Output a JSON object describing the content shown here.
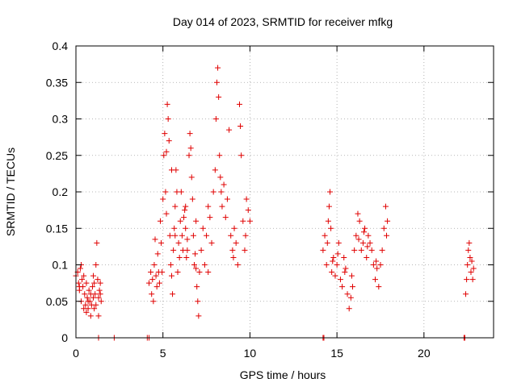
{
  "chart_data": {
    "type": "scatter",
    "title": "Day 014 of 2023, SRMTID for receiver mfkg",
    "xlabel": "GPS time / hours",
    "ylabel": "SRMTID / TECUs",
    "xlim": [
      0,
      24
    ],
    "ylim": [
      0,
      0.4
    ],
    "xticks": [
      0,
      5,
      10,
      15,
      20
    ],
    "yticks": [
      0,
      0.05,
      0.1,
      0.15,
      0.2,
      0.25,
      0.3,
      0.35,
      0.4
    ],
    "grid": true,
    "marker": "+",
    "color": "#e00000",
    "series": [
      {
        "name": "SRMTID",
        "points": [
          [
            0.0,
            0.085
          ],
          [
            0.1,
            0.09
          ],
          [
            0.15,
            0.075
          ],
          [
            0.2,
            0.065
          ],
          [
            0.25,
            0.095
          ],
          [
            0.3,
            0.05
          ],
          [
            0.35,
            0.08
          ],
          [
            0.4,
            0.07
          ],
          [
            0.45,
            0.04
          ],
          [
            0.5,
            0.06
          ],
          [
            0.55,
            0.045
          ],
          [
            0.6,
            0.035
          ],
          [
            0.65,
            0.055
          ],
          [
            0.7,
            0.04
          ],
          [
            0.75,
            0.065
          ],
          [
            0.8,
            0.05
          ],
          [
            0.85,
            0.03
          ],
          [
            0.9,
            0.045
          ],
          [
            0.95,
            0.07
          ],
          [
            1.0,
            0.055
          ],
          [
            1.05,
            0.04
          ],
          [
            1.1,
            0.06
          ],
          [
            1.15,
            0.1
          ],
          [
            1.2,
            0.13
          ],
          [
            1.25,
            0.08
          ],
          [
            1.3,
            0.03
          ],
          [
            1.35,
            0.065
          ],
          [
            1.4,
            0.075
          ],
          [
            1.45,
            0.05
          ],
          [
            0.3,
            0.1
          ],
          [
            0.45,
            0.085
          ],
          [
            0.6,
            0.075
          ],
          [
            0.85,
            0.06
          ],
          [
            1.0,
            0.085
          ],
          [
            1.15,
            0.045
          ],
          [
            1.3,
            0.055
          ],
          [
            0.2,
            0.07
          ],
          [
            0.7,
            0.05
          ],
          [
            1.05,
            0.075
          ],
          [
            1.4,
            0.06
          ],
          [
            4.2,
            0.075
          ],
          [
            4.3,
            0.09
          ],
          [
            4.35,
            0.06
          ],
          [
            4.4,
            0.08
          ],
          [
            4.45,
            0.05
          ],
          [
            4.5,
            0.1
          ],
          [
            4.55,
            0.135
          ],
          [
            4.6,
            0.085
          ],
          [
            4.65,
            0.07
          ],
          [
            4.7,
            0.115
          ],
          [
            4.75,
            0.09
          ],
          [
            4.8,
            0.075
          ],
          [
            4.85,
            0.16
          ],
          [
            4.9,
            0.13
          ],
          [
            4.95,
            0.09
          ],
          [
            5.0,
            0.19
          ],
          [
            5.05,
            0.25
          ],
          [
            5.1,
            0.28
          ],
          [
            5.15,
            0.2
          ],
          [
            5.2,
            0.17
          ],
          [
            5.25,
            0.32
          ],
          [
            5.3,
            0.3
          ],
          [
            5.35,
            0.27
          ],
          [
            5.4,
            0.14
          ],
          [
            5.45,
            0.1
          ],
          [
            5.5,
            0.085
          ],
          [
            5.55,
            0.06
          ],
          [
            5.6,
            0.12
          ],
          [
            5.65,
            0.15
          ],
          [
            5.7,
            0.18
          ],
          [
            5.75,
            0.23
          ],
          [
            5.8,
            0.2
          ],
          [
            5.85,
            0.09
          ],
          [
            5.9,
            0.13
          ],
          [
            5.95,
            0.11
          ],
          [
            6.0,
            0.16
          ],
          [
            6.05,
            0.2
          ],
          [
            6.1,
            0.14
          ],
          [
            6.15,
            0.12
          ],
          [
            6.2,
            0.165
          ],
          [
            6.25,
            0.175
          ],
          [
            6.3,
            0.15
          ],
          [
            6.35,
            0.11
          ],
          [
            6.4,
            0.135
          ],
          [
            6.5,
            0.25
          ],
          [
            6.55,
            0.28
          ],
          [
            6.6,
            0.26
          ],
          [
            6.65,
            0.22
          ],
          [
            6.7,
            0.19
          ],
          [
            6.75,
            0.14
          ],
          [
            6.8,
            0.1
          ],
          [
            6.85,
            0.115
          ],
          [
            6.9,
            0.095
          ],
          [
            6.95,
            0.07
          ],
          [
            7.0,
            0.05
          ],
          [
            7.05,
            0.03
          ],
          [
            7.1,
            0.09
          ],
          [
            7.2,
            0.12
          ],
          [
            7.3,
            0.15
          ],
          [
            7.4,
            0.1
          ],
          [
            7.5,
            0.14
          ],
          [
            7.6,
            0.18
          ],
          [
            7.7,
            0.165
          ],
          [
            7.8,
            0.13
          ],
          [
            7.9,
            0.2
          ],
          [
            8.0,
            0.23
          ],
          [
            8.05,
            0.3
          ],
          [
            8.1,
            0.35
          ],
          [
            8.15,
            0.37
          ],
          [
            8.2,
            0.33
          ],
          [
            8.25,
            0.25
          ],
          [
            8.3,
            0.22
          ],
          [
            8.4,
            0.18
          ],
          [
            8.5,
            0.21
          ],
          [
            8.6,
            0.165
          ],
          [
            8.7,
            0.19
          ],
          [
            8.8,
            0.285
          ],
          [
            8.9,
            0.14
          ],
          [
            9.0,
            0.12
          ],
          [
            9.1,
            0.15
          ],
          [
            9.2,
            0.13
          ],
          [
            9.3,
            0.1
          ],
          [
            9.4,
            0.32
          ],
          [
            9.45,
            0.29
          ],
          [
            9.5,
            0.25
          ],
          [
            9.6,
            0.16
          ],
          [
            9.7,
            0.12
          ],
          [
            9.8,
            0.19
          ],
          [
            9.9,
            0.175
          ],
          [
            10.0,
            0.16
          ],
          [
            5.2,
            0.255
          ],
          [
            5.7,
            0.14
          ],
          [
            6.4,
            0.12
          ],
          [
            6.9,
            0.16
          ],
          [
            7.6,
            0.09
          ],
          [
            8.35,
            0.2
          ],
          [
            9.05,
            0.11
          ],
          [
            9.75,
            0.14
          ],
          [
            5.5,
            0.23
          ],
          [
            6.3,
            0.18
          ],
          [
            14.2,
            0.12
          ],
          [
            14.3,
            0.14
          ],
          [
            14.4,
            0.1
          ],
          [
            14.5,
            0.16
          ],
          [
            14.55,
            0.18
          ],
          [
            14.6,
            0.2
          ],
          [
            14.65,
            0.15
          ],
          [
            14.7,
            0.09
          ],
          [
            14.8,
            0.11
          ],
          [
            14.9,
            0.085
          ],
          [
            15.0,
            0.1
          ],
          [
            15.1,
            0.13
          ],
          [
            15.2,
            0.08
          ],
          [
            15.3,
            0.07
          ],
          [
            15.4,
            0.11
          ],
          [
            15.5,
            0.095
          ],
          [
            15.6,
            0.06
          ],
          [
            15.7,
            0.04
          ],
          [
            15.8,
            0.055
          ],
          [
            15.9,
            0.07
          ],
          [
            16.0,
            0.12
          ],
          [
            16.1,
            0.14
          ],
          [
            16.2,
            0.17
          ],
          [
            16.3,
            0.16
          ],
          [
            16.4,
            0.12
          ],
          [
            16.5,
            0.13
          ],
          [
            16.6,
            0.15
          ],
          [
            16.7,
            0.11
          ],
          [
            16.8,
            0.14
          ],
          [
            16.9,
            0.13
          ],
          [
            17.0,
            0.12
          ],
          [
            17.1,
            0.1
          ],
          [
            17.2,
            0.08
          ],
          [
            17.3,
            0.095
          ],
          [
            17.4,
            0.07
          ],
          [
            17.5,
            0.1
          ],
          [
            17.6,
            0.12
          ],
          [
            17.7,
            0.15
          ],
          [
            17.8,
            0.18
          ],
          [
            17.9,
            0.16
          ],
          [
            14.45,
            0.13
          ],
          [
            15.05,
            0.115
          ],
          [
            15.45,
            0.09
          ],
          [
            16.25,
            0.135
          ],
          [
            16.75,
            0.125
          ],
          [
            17.25,
            0.105
          ],
          [
            17.85,
            0.14
          ],
          [
            14.75,
            0.105
          ],
          [
            15.85,
            0.085
          ],
          [
            16.55,
            0.145
          ],
          [
            22.4,
            0.06
          ],
          [
            22.45,
            0.08
          ],
          [
            22.5,
            0.1
          ],
          [
            22.55,
            0.12
          ],
          [
            22.6,
            0.13
          ],
          [
            22.65,
            0.11
          ],
          [
            22.7,
            0.09
          ],
          [
            22.75,
            0.105
          ],
          [
            22.8,
            0.08
          ],
          [
            22.85,
            0.095
          ],
          [
            1.3,
            0.0
          ],
          [
            2.2,
            0.0
          ],
          [
            4.1,
            0.0
          ],
          [
            4.2,
            0.0
          ],
          [
            14.2,
            0.0
          ],
          [
            14.25,
            0.0
          ],
          [
            22.3,
            0.0
          ],
          [
            22.35,
            0.0
          ]
        ]
      }
    ]
  }
}
